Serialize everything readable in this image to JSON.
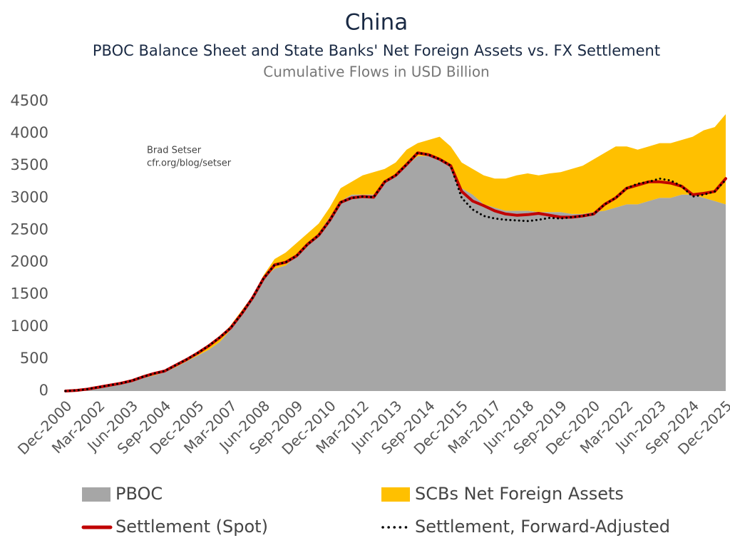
{
  "chart_data": {
    "type": "area",
    "title": "China",
    "subtitle": "PBOC Balance Sheet and State Banks' Net Foreign Assets vs. FX Settlement",
    "subtitle2": "Cumulative Flows in USD Billion",
    "annotations": [
      "Brad Setser",
      "cfr.org/blog/setser"
    ],
    "categories": [
      "Dec-2000",
      null,
      null,
      "Mar-2002",
      null,
      null,
      "Jun-2003",
      null,
      null,
      "Sep-2004",
      null,
      null,
      "Dec-2005",
      null,
      null,
      "Mar-2007",
      null,
      null,
      "Jun-2008",
      null,
      null,
      "Sep-2009",
      null,
      null,
      "Dec-2010",
      null,
      null,
      "Mar-2012",
      null,
      null,
      "Jun-2013",
      null,
      null,
      "Sep-2014",
      null,
      null,
      "Dec-2015",
      null,
      null,
      "Mar-2017",
      null,
      null,
      "Jun-2018",
      null,
      null,
      "Sep-2019",
      null,
      null,
      "Dec-2020",
      null,
      null,
      "Mar-2022",
      null,
      null,
      "Jun-2023",
      null,
      null,
      "Sep-2024",
      null,
      null,
      "Dec-2025"
    ],
    "ylim": [
      0,
      4500
    ],
    "yticks": [
      0,
      500,
      1000,
      1500,
      2000,
      2500,
      3000,
      3500,
      4000,
      4500
    ],
    "grid": false,
    "series": [
      {
        "name": "PBOC",
        "type": "stacked-area",
        "color": "#a6a6a6",
        "values": [
          0,
          10,
          20,
          50,
          80,
          110,
          150,
          200,
          240,
          290,
          370,
          460,
          550,
          640,
          760,
          950,
          1180,
          1430,
          1750,
          1900,
          1950,
          2100,
          2300,
          2450,
          2700,
          2950,
          3050,
          3050,
          3050,
          3250,
          3350,
          3500,
          3650,
          3650,
          3600,
          3500,
          3150,
          3050,
          2900,
          2850,
          2800,
          2800,
          2800,
          2780,
          2780,
          2780,
          2750,
          2750,
          2780,
          2800,
          2850,
          2900,
          2900,
          2950,
          3000,
          3000,
          3050,
          3050,
          3000,
          2950,
          2900
        ]
      },
      {
        "name": "SCBs Net Foreign Assets",
        "type": "stacked-area",
        "color": "#ffc000",
        "values": [
          0,
          0,
          0,
          0,
          0,
          0,
          0,
          0,
          10,
          10,
          10,
          20,
          30,
          60,
          70,
          70,
          70,
          50,
          50,
          150,
          200,
          200,
          150,
          150,
          150,
          200,
          200,
          300,
          350,
          200,
          200,
          250,
          200,
          250,
          350,
          300,
          400,
          400,
          450,
          450,
          500,
          550,
          580,
          570,
          600,
          620,
          700,
          750,
          820,
          900,
          950,
          900,
          850,
          850,
          850,
          850,
          850,
          900,
          1050,
          1150,
          1400
        ]
      },
      {
        "name": "Settlement (Spot)",
        "type": "line",
        "color": "#c00000",
        "dash": "solid",
        "values": [
          0,
          10,
          30,
          60,
          90,
          120,
          160,
          220,
          270,
          310,
          400,
          490,
          590,
          700,
          830,
          980,
          1200,
          1450,
          1750,
          1960,
          2000,
          2100,
          2280,
          2420,
          2650,
          2930,
          3000,
          3020,
          3010,
          3250,
          3350,
          3520,
          3700,
          3670,
          3600,
          3500,
          3100,
          2950,
          2880,
          2800,
          2750,
          2730,
          2740,
          2760,
          2730,
          2700,
          2700,
          2720,
          2750,
          2900,
          3000,
          3150,
          3200,
          3250,
          3250,
          3230,
          3180,
          3050,
          3070,
          3100,
          3300
        ]
      },
      {
        "name": "Settlement, Forward-Adjusted",
        "type": "line",
        "color": "#000000",
        "dash": "dotted",
        "values": [
          0,
          10,
          30,
          60,
          90,
          120,
          160,
          220,
          270,
          310,
          400,
          490,
          590,
          700,
          830,
          980,
          1200,
          1450,
          1750,
          1960,
          2000,
          2100,
          2280,
          2420,
          2650,
          2930,
          3000,
          3020,
          3010,
          3250,
          3350,
          3520,
          3700,
          3670,
          3600,
          3500,
          3000,
          2820,
          2720,
          2680,
          2660,
          2650,
          2640,
          2660,
          2690,
          2680,
          2700,
          2720,
          2750,
          2900,
          3000,
          3150,
          3220,
          3250,
          3300,
          3270,
          3180,
          3020,
          3050,
          3100,
          3280
        ]
      }
    ]
  }
}
